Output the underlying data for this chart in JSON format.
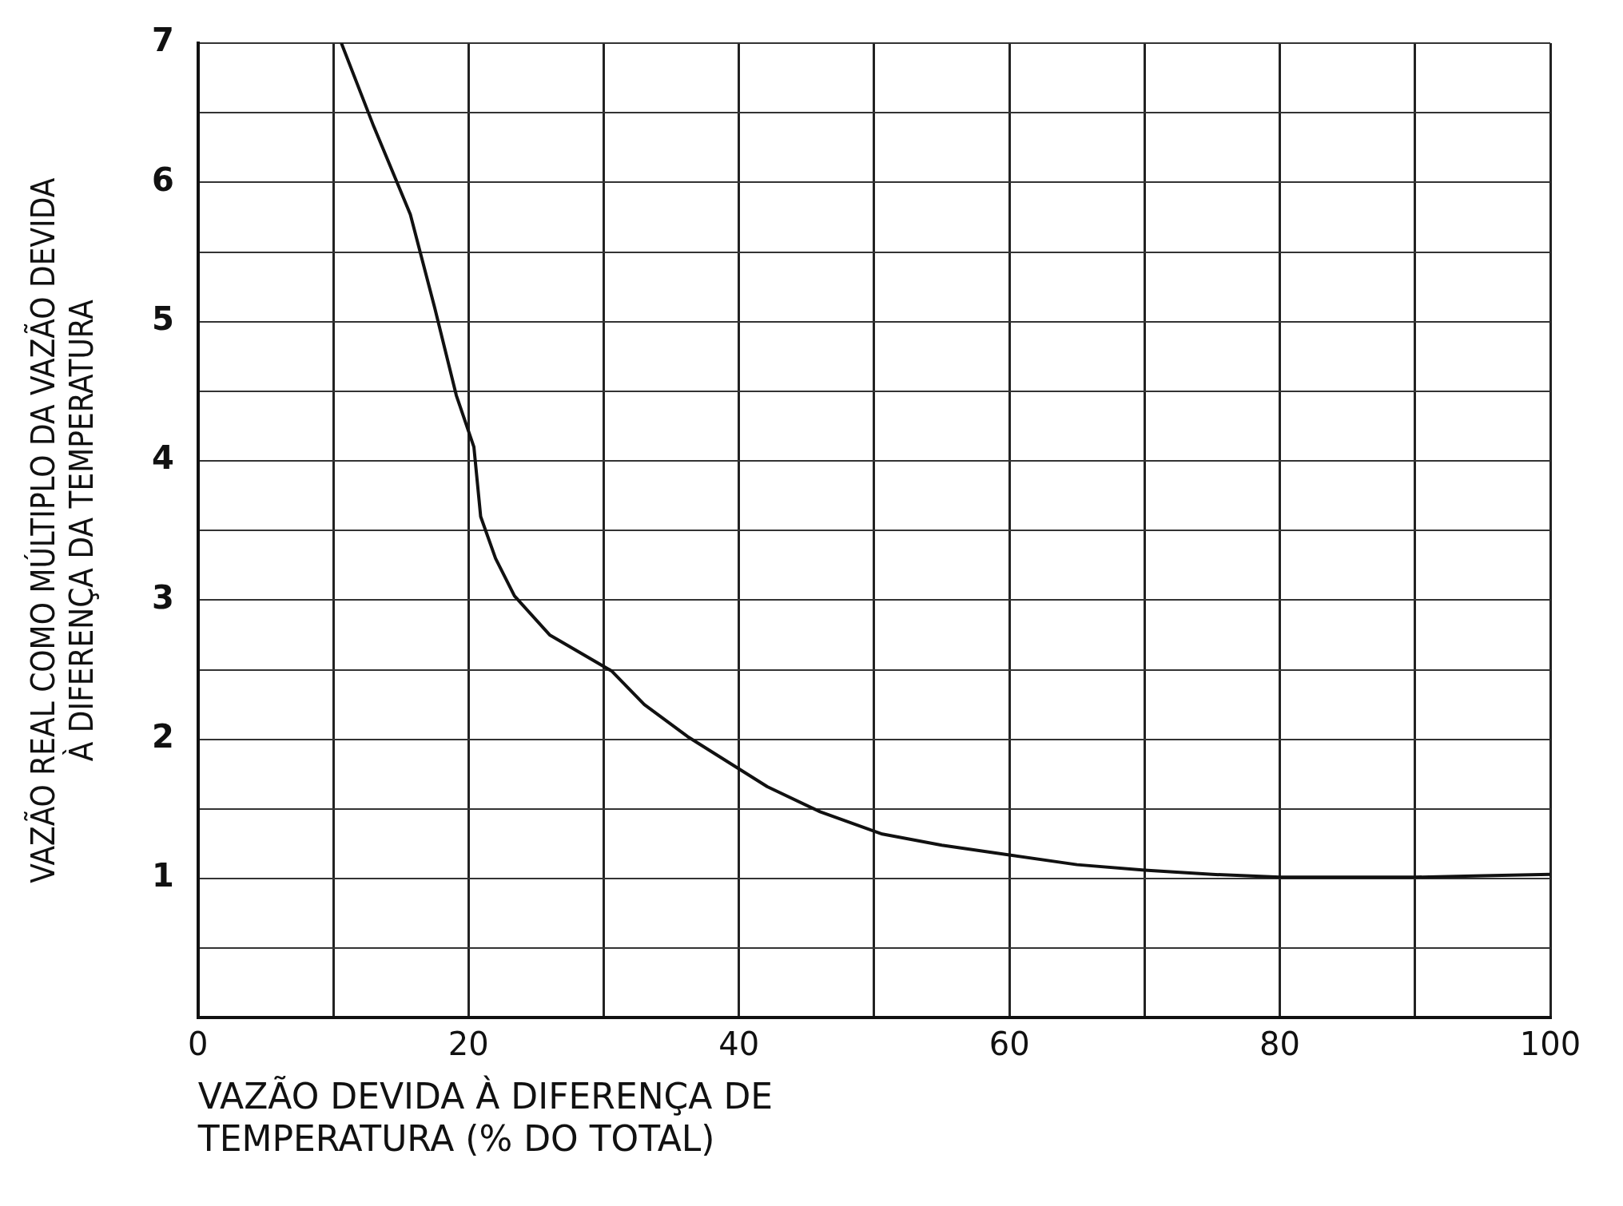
{
  "chart_data": {
    "type": "line",
    "xlabel": "VAZÃO DEVIDA À DIFERENÇA DE TEMPERATURA (% DO TOTAL)",
    "ylabel": "VAZÃO REAL COMO MÚLTIPLO DA VAZÃO DEVIDA À DIFERENÇA DA TEMPERATURA",
    "series": [
      {
        "color": "#111111",
        "x": [
          10.6,
          13,
          15.7,
          17.5,
          19.1,
          20.4,
          20.9,
          22,
          23.4,
          26,
          30.6,
          33,
          36.2,
          42.1,
          46,
          50.6,
          55,
          60,
          65,
          70,
          75,
          80,
          85,
          90,
          95,
          100
        ],
        "values": [
          7,
          6.4,
          5.77,
          5.1,
          4.47,
          4.1,
          3.6,
          3.3,
          3.03,
          2.75,
          2.49,
          2.25,
          2.02,
          1.66,
          1.48,
          1.32,
          1.24,
          1.17,
          1.1,
          1.06,
          1.03,
          1.01,
          1.01,
          1.01,
          1.02,
          1.03
        ]
      }
    ],
    "xlim": [
      0,
      100
    ],
    "ylim": [
      0,
      7
    ],
    "xticks": [
      0,
      {
        "value": 10,
        "label": null
      },
      20,
      {
        "value": 30,
        "label": null
      },
      40,
      {
        "value": 50,
        "label": null
      },
      60,
      {
        "value": 70,
        "label": null
      },
      80,
      {
        "value": 90,
        "label": null
      },
      100
    ],
    "yticks": [
      {
        "value": 0,
        "label": null
      },
      {
        "value": 0.5,
        "label": null
      },
      1,
      {
        "value": 1.5,
        "label": null
      },
      2,
      {
        "value": 2.5,
        "label": null
      },
      3,
      {
        "value": 3.5,
        "label": null
      },
      4,
      {
        "value": 4.5,
        "label": null
      },
      5,
      {
        "value": 5.5,
        "label": null
      },
      6,
      {
        "value": 6.5,
        "label": null
      },
      7
    ],
    "grid": true,
    "legend": false,
    "marker": "none",
    "line_style": "solid"
  }
}
